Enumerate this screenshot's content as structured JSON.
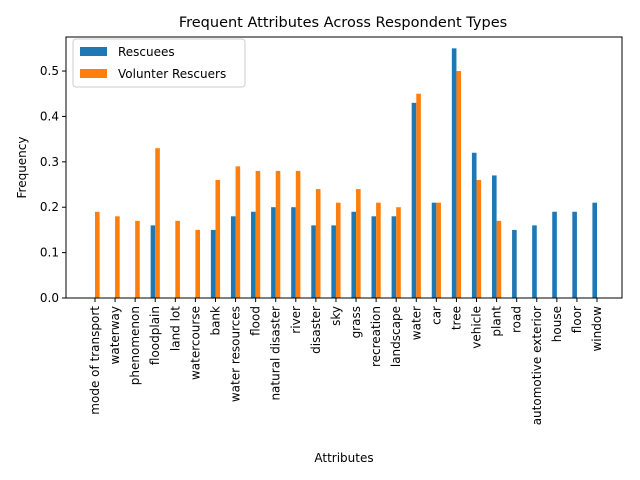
{
  "chart_data": {
    "type": "bar",
    "title": "Frequent Attributes Across Respondent Types",
    "xlabel": "Attributes",
    "ylabel": "Frequency",
    "ylim": [
      0,
      0.575
    ],
    "yticks": [
      "0.0",
      "0.1",
      "0.2",
      "0.3",
      "0.4",
      "0.5"
    ],
    "grid": false,
    "legend_position": "top-left",
    "categories": [
      "mode of transport",
      "waterway",
      "phenomenon",
      "floodplain",
      "land lot",
      "watercourse",
      "bank",
      "water resources",
      "flood",
      "natural disaster",
      "river",
      "disaster",
      "sky",
      "grass",
      "recreation",
      "landscape",
      "water",
      "car",
      "tree",
      "vehicle",
      "plant",
      "road",
      "automotive exterior",
      "house",
      "floor",
      "window"
    ],
    "series": [
      {
        "name": "Rescuees",
        "color": "#1f77b4",
        "values": [
          0,
          0,
          0,
          0.16,
          0,
          0,
          0.15,
          0.18,
          0.19,
          0.2,
          0.2,
          0.16,
          0.16,
          0.19,
          0.18,
          0.18,
          0.43,
          0.21,
          0.55,
          0.32,
          0.27,
          0.15,
          0.16,
          0.19,
          0.19,
          0.21
        ]
      },
      {
        "name": "Volunter Rescuers",
        "color": "#ff7f0e",
        "values": [
          0.19,
          0.18,
          0.17,
          0.33,
          0.17,
          0.15,
          0.26,
          0.29,
          0.28,
          0.28,
          0.28,
          0.24,
          0.21,
          0.24,
          0.21,
          0.2,
          0.45,
          0.21,
          0.5,
          0.26,
          0.17,
          0,
          0,
          0,
          0,
          0
        ]
      }
    ]
  }
}
